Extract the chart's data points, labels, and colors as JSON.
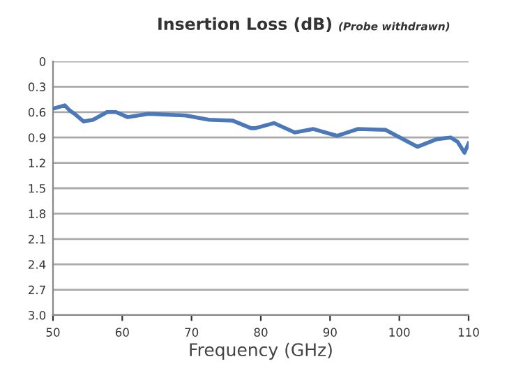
{
  "chart_data": {
    "type": "line",
    "title": "Insertion Loss (dB)",
    "subtitle": "(Probe withdrawn)",
    "xlabel": "Frequency (GHz)",
    "x": [
      50,
      51.7,
      52.4,
      53.1,
      54.4,
      55.8,
      57.8,
      59.1,
      60.8,
      63.8,
      66.5,
      69.2,
      72.5,
      75.9,
      78.6,
      79.2,
      81.9,
      84.9,
      87.6,
      91.0,
      94.0,
      98.0,
      102.6,
      105.4,
      107.4,
      108.4,
      109.4,
      110
    ],
    "series": [
      {
        "color": "#4a78b8",
        "values": [
          0.56,
          0.52,
          0.58,
          0.62,
          0.71,
          0.69,
          0.6,
          0.6,
          0.66,
          0.62,
          0.63,
          0.64,
          0.69,
          0.7,
          0.79,
          0.79,
          0.73,
          0.84,
          0.8,
          0.88,
          0.8,
          0.81,
          1.01,
          0.92,
          0.9,
          0.95,
          1.08,
          0.97
        ]
      }
    ],
    "xlim": [
      50,
      110
    ],
    "xticks": [
      50,
      60,
      70,
      80,
      90,
      100,
      110
    ],
    "ylim": [
      3,
      0
    ],
    "yticks": [
      0,
      0.3,
      0.6,
      0.9,
      1.2,
      1.5,
      1.8,
      2.1,
      2.4,
      2.7,
      {
        "value": 3,
        "label": "3.0"
      }
    ],
    "grid": "y",
    "marker": "none",
    "line_style": "solid"
  }
}
